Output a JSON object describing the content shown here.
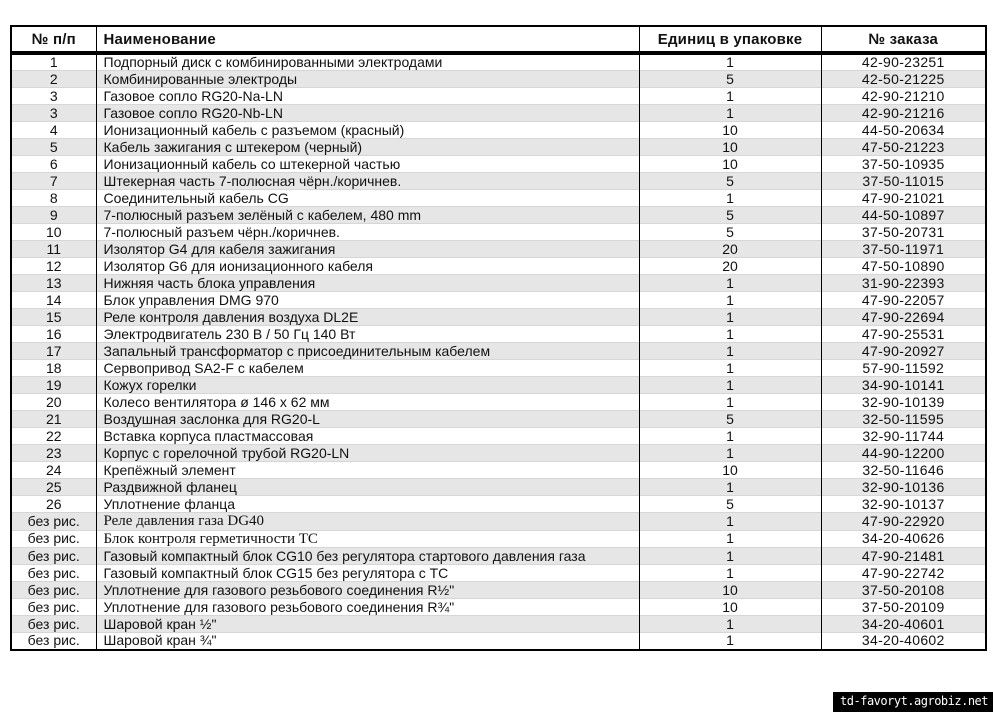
{
  "table": {
    "columns": [
      "№ п/п",
      "Наименование",
      "Единиц в упаковке",
      "№ заказа"
    ],
    "rows": [
      {
        "num": "1",
        "name": "Подпорный диск с комбинированными электродами",
        "units": "1",
        "order": "42-90-23251"
      },
      {
        "num": "2",
        "name": "Комбинированные электроды",
        "units": "5",
        "order": "42-50-21225"
      },
      {
        "num": "3",
        "name": "Газовое сопло RG20-Na-LN",
        "units": "1",
        "order": "42-90-21210"
      },
      {
        "num": "3",
        "name": "Газовое сопло RG20-Nb-LN",
        "units": "1",
        "order": "42-90-21216"
      },
      {
        "num": "4",
        "name": "Ионизационный кабель с разъемом (красный)",
        "units": "10",
        "order": "44-50-20634"
      },
      {
        "num": "5",
        "name": "Кабель зажигания с штекером (черный)",
        "units": "10",
        "order": "47-50-21223"
      },
      {
        "num": "6",
        "name": "Ионизационный кабель со штекерной частью",
        "units": "10",
        "order": "37-50-10935"
      },
      {
        "num": "7",
        "name": "Штекерная часть 7-полюсная чёрн./коричнев.",
        "units": "5",
        "order": "37-50-11015"
      },
      {
        "num": "8",
        "name": "Соединительный кабель CG",
        "units": "1",
        "order": "47-90-21021"
      },
      {
        "num": "9",
        "name": "7-полюсный разъем зелёный с кабелем, 480 mm",
        "units": "5",
        "order": "44-50-10897"
      },
      {
        "num": "10",
        "name": "7-полюсный разъем чёрн./коричнев.",
        "units": "5",
        "order": "37-50-20731"
      },
      {
        "num": "11",
        "name": "Изолятор G4 для кабеля зажигания",
        "units": "20",
        "order": "37-50-11971"
      },
      {
        "num": "12",
        "name": "Изолятор G6 для ионизационного кабеля",
        "units": "20",
        "order": "47-50-10890"
      },
      {
        "num": "13",
        "name": "Нижняя часть блока управления",
        "units": "1",
        "order": "31-90-22393"
      },
      {
        "num": "14",
        "name": "Блок управления DMG 970",
        "units": "1",
        "order": "47-90-22057"
      },
      {
        "num": "15",
        "name": "Реле контроля давления воздуха DL2E",
        "units": "1",
        "order": "47-90-22694"
      },
      {
        "num": "16",
        "name": "Электродвигатель 230 В / 50 Гц 140 Вт",
        "units": "1",
        "order": "47-90-25531"
      },
      {
        "num": "17",
        "name": "Запальный трансформатор с присоединительным кабелем",
        "units": "1",
        "order": "47-90-20927"
      },
      {
        "num": "18",
        "name": "Сервопривод SA2-F с кабелем",
        "units": "1",
        "order": "57-90-11592"
      },
      {
        "num": "19",
        "name": "Кожух горелки",
        "units": "1",
        "order": "34-90-10141"
      },
      {
        "num": "20",
        "name": "Колесо вентилятора ø 146 x 62 мм",
        "units": "1",
        "order": "32-90-10139"
      },
      {
        "num": "21",
        "name": "Воздушная заслонка для RG20-L",
        "units": "5",
        "order": "32-50-11595"
      },
      {
        "num": "22",
        "name": "Вставка корпуса пластмассовая",
        "units": "1",
        "order": "32-90-11744"
      },
      {
        "num": "23",
        "name": "Корпус с горелочной трубой RG20-LN",
        "units": "1",
        "order": "44-90-12200"
      },
      {
        "num": "24",
        "name": "Крепёжный элемент",
        "units": "10",
        "order": "32-50-11646"
      },
      {
        "num": "25",
        "name": "Раздвижной фланец",
        "units": "1",
        "order": "32-90-10136"
      },
      {
        "num": "26",
        "name": "Уплотнение фланца",
        "units": "5",
        "order": "32-90-10137"
      },
      {
        "num": "без рис.",
        "name": "Реле давления газа DG40",
        "units": "1",
        "order": "47-90-22920",
        "serif": true
      },
      {
        "num": "без рис.",
        "name": "Блок контроля герметичности ТС",
        "units": "1",
        "order": "34-20-40626",
        "serif": true
      },
      {
        "num": "без рис.",
        "name": "Газовый компактный блок CG10 без регулятора стартового давления газа",
        "units": "1",
        "order": "47-90-21481"
      },
      {
        "num": "без рис.",
        "name": "Газовый компактный блок CG15 без регулятора с ТС",
        "units": "1",
        "order": "47-90-22742"
      },
      {
        "num": "без рис.",
        "name": "Уплотнение для газового резьбового соединения R½\"",
        "units": "10",
        "order": "37-50-20108"
      },
      {
        "num": "без рис.",
        "name": "Уплотнение для газового резьбового соединения R¾\"",
        "units": "10",
        "order": "37-50-20109"
      },
      {
        "num": "без рис.",
        "name": "Шаровой кран ½\"",
        "units": "1",
        "order": "34-20-40601"
      },
      {
        "num": "без рис.",
        "name": "Шаровой кран ¾\"",
        "units": "1",
        "order": "34-20-40602"
      }
    ]
  },
  "watermark": {
    "text": "td-favoryt.agrobiz.net",
    "bg": "#000000",
    "fg": "#ffffff"
  },
  "colors": {
    "stripe": "#e6e6e6",
    "border": "#000000",
    "text": "#111111"
  }
}
